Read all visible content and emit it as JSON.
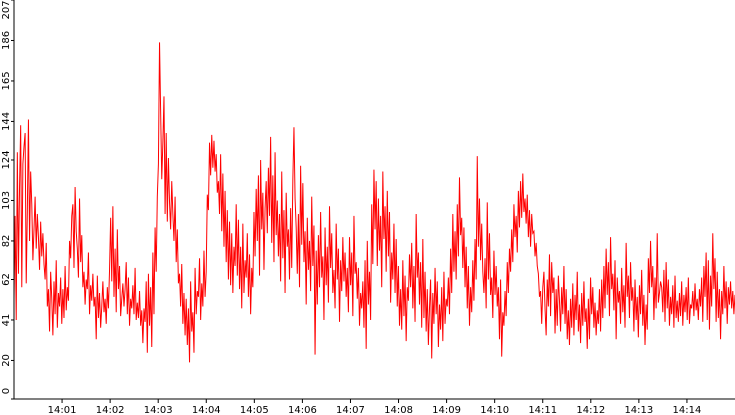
{
  "chart_data": {
    "type": "line",
    "title": "",
    "xlabel": "",
    "ylabel": "",
    "ylim": [
      0,
      207
    ],
    "y_ticks": [
      0,
      20,
      41,
      62,
      82,
      103,
      124,
      144,
      165,
      186,
      207
    ],
    "x_ticks": [
      "14:01",
      "14:02",
      "14:03",
      "14:04",
      "14:05",
      "14:06",
      "14:07",
      "14:08",
      "14:09",
      "14:10",
      "14:11",
      "14:12",
      "14:13",
      "14:14"
    ],
    "x_range_minutes": [
      "14:00",
      "14:15"
    ],
    "grid": false,
    "legend": "none",
    "colors": {
      "line": "#ff0000",
      "axis": "#000000",
      "background": "#ffffff"
    },
    "series": [
      {
        "values": [
          52,
          95,
          41,
          128,
          65,
          110,
          142,
          58,
          122,
          131,
          138,
          60,
          97,
          145,
          82,
          118,
          101,
          72,
          88,
          105,
          78,
          96,
          84,
          67,
          92,
          74,
          86,
          70,
          62,
          81,
          48,
          57,
          35,
          66,
          52,
          33,
          61,
          44,
          72,
          37,
          55,
          48,
          63,
          39,
          57,
          42,
          69,
          46,
          58,
          51,
          82,
          73,
          95,
          101,
          68,
          110,
          87,
          78,
          63,
          104,
          71,
          85,
          58,
          66,
          49,
          62,
          57,
          76,
          44,
          59,
          51,
          65,
          48,
          53,
          31,
          64,
          42,
          55,
          37,
          48,
          61,
          45,
          52,
          39,
          58,
          47,
          67,
          94,
          61,
          100,
          53,
          78,
          45,
          88,
          57,
          69,
          43,
          52,
          60,
          48,
          57,
          71,
          44,
          63,
          38,
          52,
          47,
          59,
          44,
          68,
          41,
          50,
          42,
          56,
          38,
          46,
          29,
          47,
          40,
          61,
          24,
          65,
          38,
          58,
          27,
          76,
          44,
          89,
          66,
          105,
          122,
          185,
          149,
          114,
          133,
          157,
          96,
          138,
          92,
          125,
          102,
          88,
          113,
          96,
          82,
          105,
          71,
          88,
          60,
          65,
          48,
          70,
          39,
          55,
          33,
          52,
          28,
          47,
          19,
          61,
          35,
          45,
          24,
          68,
          44,
          56,
          53,
          73,
          41,
          60,
          48,
          77,
          53,
          66,
          106,
          98,
          133,
          116,
          137,
          120,
          134,
          118,
          127,
          107,
          113,
          96,
          127,
          87,
          117,
          79,
          108,
          71,
          98,
          62,
          92,
          59,
          86,
          55,
          79,
          69,
          101,
          64,
          93,
          57,
          79,
          47,
          91,
          55,
          72,
          63,
          86,
          53,
          75,
          44,
          68,
          58,
          97,
          74,
          109,
          82,
          116,
          64,
          124,
          88,
          107,
          67,
          99,
          113,
          86,
          120,
          95,
          136,
          81,
          116,
          71,
          128,
          85,
          103,
          74,
          96,
          61,
          118,
          73,
          98,
          55,
          107,
          79,
          88,
          62,
          99,
          68,
          114,
          141,
          104,
          89,
          65,
          96,
          58,
          121,
          80,
          112,
          71,
          87,
          49,
          94,
          67,
          82,
          56,
          105,
          69,
          90,
          23,
          77,
          49,
          85,
          58,
          97,
          63,
          74,
          41,
          89,
          59,
          79,
          50,
          100,
          68,
          86,
          55,
          67,
          47,
          91,
          62,
          78,
          40,
          72,
          56,
          84,
          61,
          76,
          53,
          68,
          45,
          84,
          59,
          76,
          43,
          95,
          65,
          71,
          52,
          68,
          38,
          55,
          47,
          61,
          37,
          72,
          26,
          82,
          49,
          66,
          41,
          101,
          70,
          119,
          88,
          113,
          69,
          104,
          77,
          95,
          58,
          118,
          83,
          100,
          66,
          108,
          74,
          97,
          50,
          76,
          62,
          91,
          55,
          83,
          48,
          69,
          38,
          57,
          36,
          72,
          43,
          64,
          30,
          58,
          51,
          75,
          58,
          81,
          47,
          69,
          40,
          96,
          63,
          76,
          49,
          71,
          37,
          83,
          42,
          66,
          35,
          57,
          28,
          47,
          62,
          21,
          55,
          39,
          68,
          44,
          61,
          27,
          49,
          36,
          58,
          30,
          66,
          39,
          52,
          48,
          63,
          44,
          78,
          55,
          96,
          66,
          87,
          62,
          101,
          74,
          115,
          85,
          94,
          68,
          89,
          58,
          79,
          47,
          69,
          38,
          58,
          45,
          72,
          51,
          83,
          62,
          126,
          79,
          104,
          72,
          91,
          66,
          55,
          73,
          47,
          102,
          62,
          86,
          54,
          63,
          42,
          77,
          54,
          69,
          48,
          58,
          31,
          62,
          22,
          45,
          38,
          56,
          43,
          71,
          55,
          78,
          66,
          88,
          71,
          101,
          84,
          95,
          76,
          108,
          89,
          113,
          94,
          117,
          97,
          104,
          91,
          106,
          84,
          98,
          79,
          96,
          86,
          87,
          74,
          81,
          69,
          65,
          53,
          56,
          39,
          58,
          66,
          47,
          33,
          62,
          48,
          75,
          43,
          71,
          55,
          63,
          34,
          57,
          38,
          64,
          51,
          35,
          58,
          44,
          69,
          39,
          57,
          31,
          46,
          28,
          52,
          37,
          60,
          33,
          54,
          41,
          66,
          35,
          49,
          29,
          55,
          38,
          61,
          40,
          47,
          26,
          52,
          31,
          63,
          44,
          58,
          37,
          50,
          33,
          46,
          39,
          57,
          35,
          62,
          42,
          69,
          47,
          78,
          54,
          71,
          43,
          84,
          57,
          65,
          46,
          72,
          31,
          63,
          50,
          56,
          39,
          68,
          45,
          59,
          37,
          81,
          53,
          64,
          42,
          71,
          51,
          58,
          35,
          62,
          41,
          53,
          32,
          59,
          44,
          67,
          38,
          54,
          28,
          49,
          36,
          73,
          55,
          82,
          58,
          69,
          41,
          63,
          47,
          86,
          50,
          55,
          61,
          58,
          45,
          67,
          40,
          71,
          47,
          62,
          38,
          53,
          44,
          59,
          37,
          64,
          42,
          51,
          40,
          55,
          43,
          61,
          38,
          54,
          45,
          58,
          41,
          63,
          39,
          49,
          47,
          56,
          43,
          60,
          46,
          52,
          41,
          57,
          48,
          63,
          40,
          69,
          53,
          76,
          41,
          72,
          36,
          64,
          48,
          86,
          57,
          73,
          40,
          66,
          42,
          57,
          31,
          56,
          44,
          69,
          47,
          61,
          39,
          58,
          49,
          61,
          47,
          56,
          44,
          54
        ]
      }
    ]
  }
}
